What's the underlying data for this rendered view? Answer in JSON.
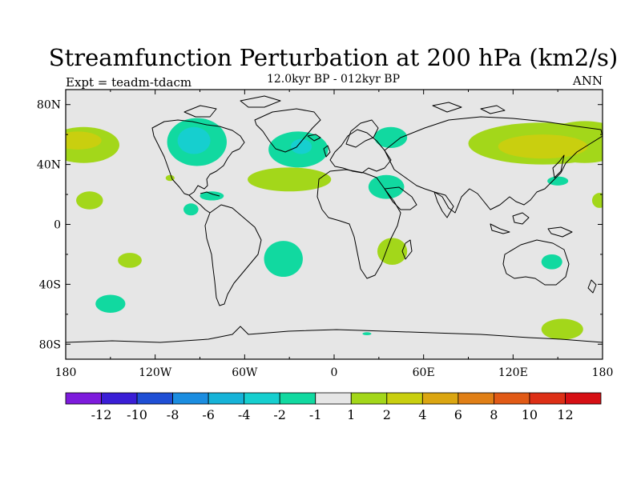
{
  "chart_data": {
    "type": "heatmap",
    "title": "Streamfunction Perturbation at 200 hPa (km2/s)",
    "subtitle": "12.0kyr BP - 012kyr BP",
    "left_label": "Expt = teadm-tdacm",
    "right_label": "ANN",
    "x_ticks": [
      {
        "value": -180,
        "label": "180"
      },
      {
        "value": -120,
        "label": "120W"
      },
      {
        "value": -60,
        "label": "60W"
      },
      {
        "value": 0,
        "label": "0"
      },
      {
        "value": 60,
        "label": "60E"
      },
      {
        "value": 120,
        "label": "120E"
      },
      {
        "value": 180,
        "label": "180"
      }
    ],
    "y_ticks": [
      {
        "value": 80,
        "label": "80N"
      },
      {
        "value": 40,
        "label": "40N"
      },
      {
        "value": 0,
        "label": "0"
      },
      {
        "value": -40,
        "label": "40S"
      },
      {
        "value": -80,
        "label": "80S"
      }
    ],
    "xlim": [
      -180,
      180
    ],
    "ylim": [
      -90,
      90
    ],
    "colorbar": {
      "colors": [
        "#7d1bdc",
        "#3a1ed6",
        "#1f4fd5",
        "#1b8de0",
        "#16b3d8",
        "#16cfcf",
        "#11d9a0",
        "#e6e6e6",
        "#a3d71a",
        "#c9cf0f",
        "#dba611",
        "#e07f16",
        "#e15a16",
        "#dd2f16",
        "#d60f14"
      ],
      "labels": [
        "-12",
        "-10",
        "-8",
        "-6",
        "-4",
        "-2",
        "-1",
        "1",
        "2",
        "4",
        "6",
        "8",
        "10",
        "12"
      ]
    },
    "regions": [
      {
        "lon": 168,
        "lat": 55,
        "rlon": 28,
        "rlat": 14,
        "color": "#a3d71a"
      },
      {
        "lon": -168,
        "lat": 53,
        "rlon": 24,
        "rlat": 12,
        "color": "#a3d71a"
      },
      {
        "lon": -172,
        "lat": 56,
        "rlon": 16,
        "rlat": 6,
        "color": "#c9cf0f"
      },
      {
        "lon": 140,
        "lat": 54,
        "rlon": 50,
        "rlat": 14,
        "color": "#a3d71a"
      },
      {
        "lon": 140,
        "lat": 52,
        "rlon": 30,
        "rlat": 8,
        "color": "#c9cf0f"
      },
      {
        "lon": -92,
        "lat": 55,
        "rlon": 20,
        "rlat": 16,
        "color": "#11d9a0"
      },
      {
        "lon": -94,
        "lat": 56,
        "rlon": 11,
        "rlat": 9,
        "color": "#16cfcf"
      },
      {
        "lon": -24,
        "lat": 50,
        "rlon": 20,
        "rlat": 12,
        "color": "#11d9a0"
      },
      {
        "lon": -22,
        "lat": 52,
        "rlon": 7,
        "rlat": 5,
        "color": "#16cfcf"
      },
      {
        "lon": 38,
        "lat": 58,
        "rlon": 11,
        "rlat": 7,
        "color": "#11d9a0"
      },
      {
        "lon": -30,
        "lat": 30,
        "rlon": 28,
        "rlat": 8,
        "color": "#a3d71a"
      },
      {
        "lon": 35,
        "lat": 25,
        "rlon": 12,
        "rlat": 8,
        "color": "#11d9a0"
      },
      {
        "lon": 150,
        "lat": 29,
        "rlon": 7,
        "rlat": 3,
        "color": "#11d9a0"
      },
      {
        "lon": -164,
        "lat": 16,
        "rlon": 9,
        "rlat": 6,
        "color": "#a3d71a"
      },
      {
        "lon": 178,
        "lat": 16,
        "rlon": 5,
        "rlat": 5,
        "color": "#a3d71a"
      },
      {
        "lon": -82,
        "lat": 19,
        "rlon": 8,
        "rlat": 3,
        "color": "#11d9a0"
      },
      {
        "lon": -96,
        "lat": 10,
        "rlon": 5,
        "rlat": 4,
        "color": "#11d9a0"
      },
      {
        "lon": -110,
        "lat": 31,
        "rlon": 3,
        "rlat": 2,
        "color": "#a3d71a"
      },
      {
        "lon": 39,
        "lat": -18,
        "rlon": 10,
        "rlat": 9,
        "color": "#a3d71a"
      },
      {
        "lon": -34,
        "lat": -23,
        "rlon": 13,
        "rlat": 12,
        "color": "#11d9a0"
      },
      {
        "lon": -137,
        "lat": -24,
        "rlon": 8,
        "rlat": 5,
        "color": "#a3d71a"
      },
      {
        "lon": -150,
        "lat": -53,
        "rlon": 10,
        "rlat": 6,
        "color": "#11d9a0"
      },
      {
        "lon": 146,
        "lat": -25,
        "rlon": 7,
        "rlat": 5,
        "color": "#11d9a0"
      },
      {
        "lon": 153,
        "lat": -70,
        "rlon": 14,
        "rlat": 7,
        "color": "#a3d71a"
      },
      {
        "lon": 22,
        "lat": -73,
        "rlon": 3,
        "rlat": 1,
        "color": "#11d9a0"
      }
    ]
  }
}
